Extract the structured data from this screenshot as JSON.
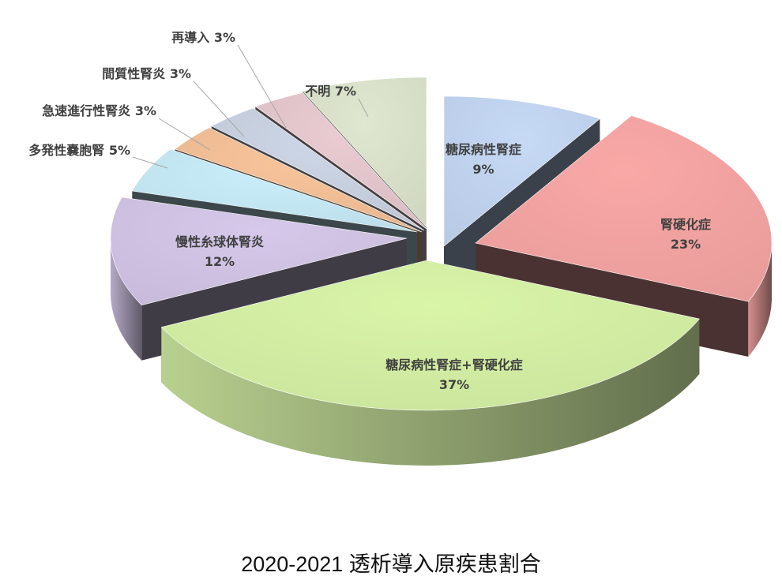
{
  "chart_data": {
    "type": "pie",
    "title": "2020-2021 透析導入原疾患割合",
    "labels_style": "category-and-percent",
    "slices": [
      {
        "name": "糖尿病性腎症",
        "value": 9,
        "label": "9%",
        "color": "#c6d9f5"
      },
      {
        "name": "腎硬化症",
        "value": 23,
        "label": "23%",
        "color": "#f9a8a6"
      },
      {
        "name": "糖尿病性腎症+腎硬化症",
        "value": 37,
        "label": "37%",
        "color": "#d9f5a8"
      },
      {
        "name": "慢性糸球体腎炎",
        "value": 12,
        "label": "12%",
        "color": "#d6c8ea"
      },
      {
        "name": "多発性嚢胞腎",
        "value": 5,
        "label": "5%",
        "color": "#c9eefa"
      },
      {
        "name": "急速進行性腎炎",
        "value": 3,
        "label": "3%",
        "color": "#f8c49a"
      },
      {
        "name": "間質性腎炎",
        "value": 3,
        "label": "3%",
        "color": "#cdd6e6"
      },
      {
        "name": "再導入",
        "value": 3,
        "label": "3%",
        "color": "#e9cbd1"
      },
      {
        "name": "不明",
        "value": 7,
        "label": "7%",
        "color": "#dfe7d0"
      }
    ]
  }
}
